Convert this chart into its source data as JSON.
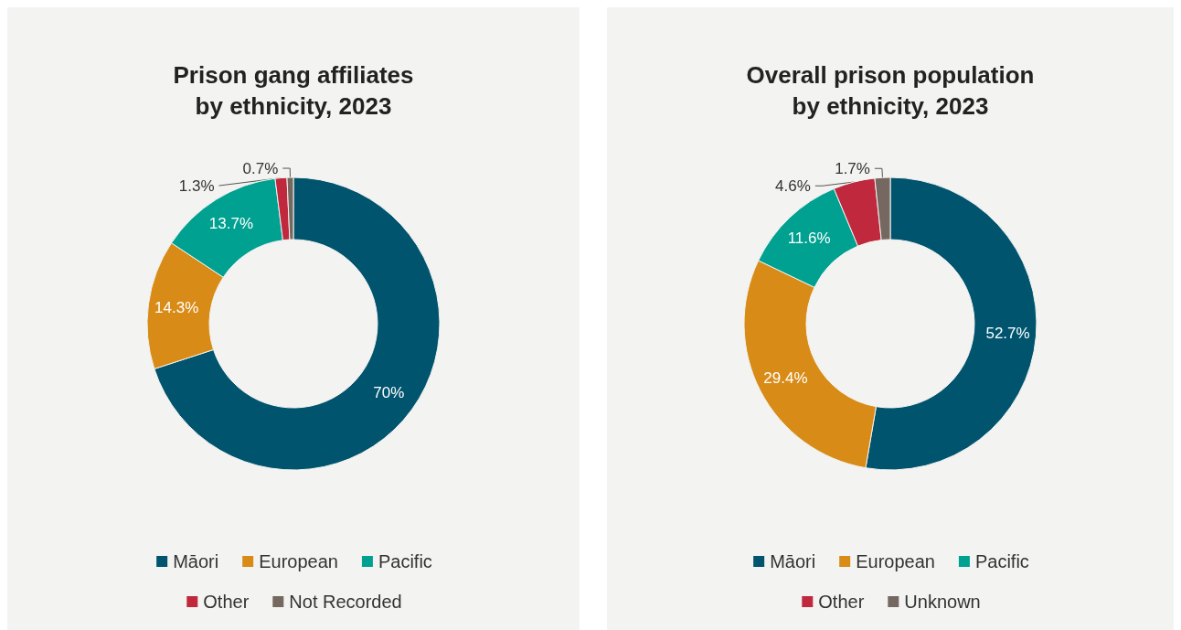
{
  "chart_data": [
    {
      "type": "donut",
      "title": "Prison gang affiliates\nby ethnicity, 2023",
      "categories": [
        "Māori",
        "European",
        "Pacific",
        "Other",
        "Not Recorded"
      ],
      "values": [
        70,
        14.3,
        13.7,
        1.3,
        0.7
      ],
      "value_labels": [
        "70%",
        "14.3%",
        "13.7%",
        "1.3%",
        "0.7%"
      ],
      "colors": [
        "#00546e",
        "#d88c17",
        "#00a191",
        "#c0283d",
        "#756860"
      ],
      "legend": "bottom"
    },
    {
      "type": "donut",
      "title": "Overall prison population\nby ethnicity, 2023",
      "categories": [
        "Māori",
        "European",
        "Pacific",
        "Other",
        "Unknown"
      ],
      "values": [
        52.7,
        29.4,
        11.6,
        4.6,
        1.7
      ],
      "value_labels": [
        "52.7%",
        "29.4%",
        "11.6%",
        "4.6%",
        "1.7%"
      ],
      "colors": [
        "#00546e",
        "#d88c17",
        "#00a191",
        "#c0283d",
        "#756860"
      ],
      "legend": "bottom"
    }
  ]
}
